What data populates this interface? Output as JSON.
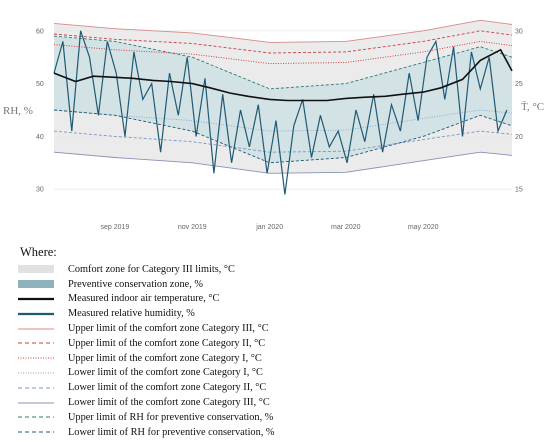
{
  "chart_data": {
    "type": "line",
    "x_tick_labels": [
      "sep 2019",
      "nov 2019",
      "jan 2020",
      "mar 2020",
      "may 2020"
    ],
    "x_range": [
      "2019-07-15",
      "2020-07-10"
    ],
    "y_left": {
      "label": "RH, %",
      "ticks": [
        30,
        40,
        50,
        60
      ],
      "range": [
        27,
        63
      ]
    },
    "y_right": {
      "label": "T̄, °C",
      "ticks": [
        15,
        20,
        25,
        30
      ],
      "range": [
        13.5,
        31.5
      ]
    },
    "grid": true,
    "legend_placement": "below",
    "colors": {
      "comfort_band": "#e2e2e2",
      "preventive_band": "#cfe0e3",
      "temperature": "#111111",
      "humidity": "#1f5a74",
      "upper_cat3": "#d88a8a",
      "upper_cat2": "#c94040",
      "upper_cat1": "#d03030",
      "lower_cat1": "#8aa8d0",
      "lower_cat2": "#7a96c8",
      "lower_cat3": "#8a90b8",
      "rh_preventive": "#2d7a7a"
    },
    "series": [
      {
        "key": "temp",
        "axis": "right",
        "x": [
          "2019-07-15",
          "2019-08-01",
          "2019-08-15",
          "2019-09-01",
          "2019-09-15",
          "2019-10-01",
          "2019-10-15",
          "2019-11-01",
          "2019-11-15",
          "2019-12-01",
          "2019-12-15",
          "2020-01-01",
          "2020-01-15",
          "2020-02-01",
          "2020-02-15",
          "2020-03-01",
          "2020-03-15",
          "2020-04-01",
          "2020-04-15",
          "2020-05-01",
          "2020-05-15",
          "2020-06-01",
          "2020-06-15",
          "2020-07-01",
          "2020-07-10"
        ],
        "values": [
          26.0,
          25.2,
          25.7,
          25.6,
          25.5,
          25.3,
          25.2,
          25.0,
          24.6,
          24.1,
          23.8,
          23.5,
          23.4,
          23.4,
          23.4,
          23.6,
          23.7,
          23.8,
          24.0,
          24.2,
          24.6,
          25.4,
          27.2,
          28.2,
          26.2
        ]
      },
      {
        "key": "rh",
        "axis": "left",
        "x": [
          "2019-07-15",
          "2019-07-22",
          "2019-07-29",
          "2019-08-05",
          "2019-08-12",
          "2019-08-19",
          "2019-08-26",
          "2019-09-02",
          "2019-09-09",
          "2019-09-16",
          "2019-09-23",
          "2019-09-30",
          "2019-10-07",
          "2019-10-14",
          "2019-10-21",
          "2019-10-28",
          "2019-11-04",
          "2019-11-11",
          "2019-11-18",
          "2019-11-25",
          "2019-12-02",
          "2019-12-09",
          "2019-12-16",
          "2019-12-23",
          "2019-12-30",
          "2020-01-06",
          "2020-01-13",
          "2020-01-20",
          "2020-01-27",
          "2020-02-03",
          "2020-02-10",
          "2020-02-17",
          "2020-02-24",
          "2020-03-02",
          "2020-03-09",
          "2020-03-16",
          "2020-03-23",
          "2020-03-30",
          "2020-04-06",
          "2020-04-13",
          "2020-04-20",
          "2020-04-27",
          "2020-05-04",
          "2020-05-11",
          "2020-05-18",
          "2020-05-25",
          "2020-06-01",
          "2020-06-08",
          "2020-06-15",
          "2020-06-22",
          "2020-06-29",
          "2020-07-06"
        ],
        "values": [
          52,
          58,
          41,
          60,
          55,
          44,
          58,
          52,
          40,
          56,
          47,
          50,
          37,
          52,
          44,
          55,
          40,
          51,
          33,
          48,
          35,
          45,
          38,
          46,
          33,
          43,
          29,
          42,
          47,
          36,
          44,
          38,
          41,
          35,
          45,
          39,
          48,
          37,
          46,
          41,
          52,
          43,
          55,
          58,
          47,
          57,
          40,
          56,
          49,
          55,
          41,
          45
        ]
      },
      {
        "key": "upper_cat3",
        "axis": "right",
        "x": [
          "2019-07-15",
          "2019-09-01",
          "2019-11-01",
          "2020-01-01",
          "2020-03-01",
          "2020-05-01",
          "2020-06-15",
          "2020-07-10"
        ],
        "values": [
          30.7,
          30.2,
          29.8,
          28.9,
          29.0,
          30.0,
          31.0,
          30.6
        ]
      },
      {
        "key": "upper_cat2",
        "axis": "right",
        "x": [
          "2019-07-15",
          "2019-09-01",
          "2019-11-01",
          "2020-01-01",
          "2020-03-01",
          "2020-05-01",
          "2020-06-15",
          "2020-07-10"
        ],
        "values": [
          29.7,
          29.2,
          28.8,
          27.9,
          28.0,
          29.0,
          30.0,
          29.6
        ]
      },
      {
        "key": "upper_cat1",
        "axis": "right",
        "x": [
          "2019-07-15",
          "2019-09-01",
          "2019-11-01",
          "2020-01-01",
          "2020-03-01",
          "2020-05-01",
          "2020-06-15",
          "2020-07-10"
        ],
        "values": [
          28.7,
          28.2,
          27.8,
          26.9,
          27.0,
          28.0,
          29.0,
          28.6
        ]
      },
      {
        "key": "lower_cat1",
        "axis": "right",
        "x": [
          "2019-07-15",
          "2019-09-01",
          "2019-11-01",
          "2020-01-01",
          "2020-03-01",
          "2020-05-01",
          "2020-06-15",
          "2020-07-10"
        ],
        "values": [
          22.5,
          22.0,
          21.5,
          20.5,
          20.6,
          21.7,
          22.5,
          22.2
        ]
      },
      {
        "key": "lower_cat2",
        "axis": "right",
        "x": [
          "2019-07-15",
          "2019-09-01",
          "2019-11-01",
          "2020-01-01",
          "2020-03-01",
          "2020-05-01",
          "2020-06-15",
          "2020-07-10"
        ],
        "values": [
          20.5,
          20.0,
          19.5,
          18.5,
          18.6,
          19.7,
          20.5,
          20.2
        ]
      },
      {
        "key": "lower_cat3",
        "axis": "right",
        "x": [
          "2019-07-15",
          "2019-09-01",
          "2019-11-01",
          "2020-01-01",
          "2020-03-01",
          "2020-05-01",
          "2020-06-15",
          "2020-07-10"
        ],
        "values": [
          18.5,
          18.0,
          17.5,
          16.5,
          16.6,
          17.7,
          18.5,
          18.2
        ]
      },
      {
        "key": "rh_upper",
        "axis": "left",
        "x": [
          "2019-07-15",
          "2019-09-01",
          "2019-11-01",
          "2020-01-01",
          "2020-03-01",
          "2020-05-01",
          "2020-06-15",
          "2020-07-10"
        ],
        "values": [
          59,
          58,
          55,
          49,
          50,
          54,
          57,
          55
        ]
      },
      {
        "key": "rh_lower",
        "axis": "left",
        "x": [
          "2019-07-15",
          "2019-09-01",
          "2019-11-01",
          "2020-01-01",
          "2020-03-01",
          "2020-05-01",
          "2020-06-15",
          "2020-07-10"
        ],
        "values": [
          45,
          44,
          41,
          35,
          36,
          40,
          44,
          42
        ]
      }
    ]
  },
  "legend": {
    "title": "Where:",
    "items": [
      {
        "label": "Comfort zone for Category III limits, °C",
        "swatch": "band",
        "color": "#e2e2e2"
      },
      {
        "label": "Preventive conservation zone, %",
        "swatch": "band",
        "color": "#8fb3bd"
      },
      {
        "label": "Measured indoor air temperature, °C",
        "swatch": "solid-thick",
        "color": "#111111"
      },
      {
        "label": "Measured relative humidity, %",
        "swatch": "solid-thick",
        "color": "#1f5a74"
      },
      {
        "label": "Upper limit of the comfort zone Category III, °C",
        "swatch": "solid",
        "color": "#d88a8a"
      },
      {
        "label": "Upper limit of the comfort zone Category II, °C",
        "swatch": "dashed",
        "color": "#c94040"
      },
      {
        "label": "Upper limit of the comfort zone Category I, °C",
        "swatch": "dotted",
        "color": "#d03030"
      },
      {
        "label": "Lower limit of the comfort zone Category I, °C",
        "swatch": "dotted",
        "color": "#8aa8d0"
      },
      {
        "label": "Lower limit of the comfort zone Category II, °C",
        "swatch": "dashed",
        "color": "#7a96c8"
      },
      {
        "label": "Lower limit of the comfort zone Category III, °C",
        "swatch": "solid",
        "color": "#8a90b8"
      },
      {
        "label": "Upper limit of RH for preventive conservation, %",
        "swatch": "dashed",
        "color": "#2d7a7a"
      },
      {
        "label": "Lower limit of RH for preventive conservation, %",
        "swatch": "dashed",
        "color": "#1f5a74"
      }
    ]
  }
}
